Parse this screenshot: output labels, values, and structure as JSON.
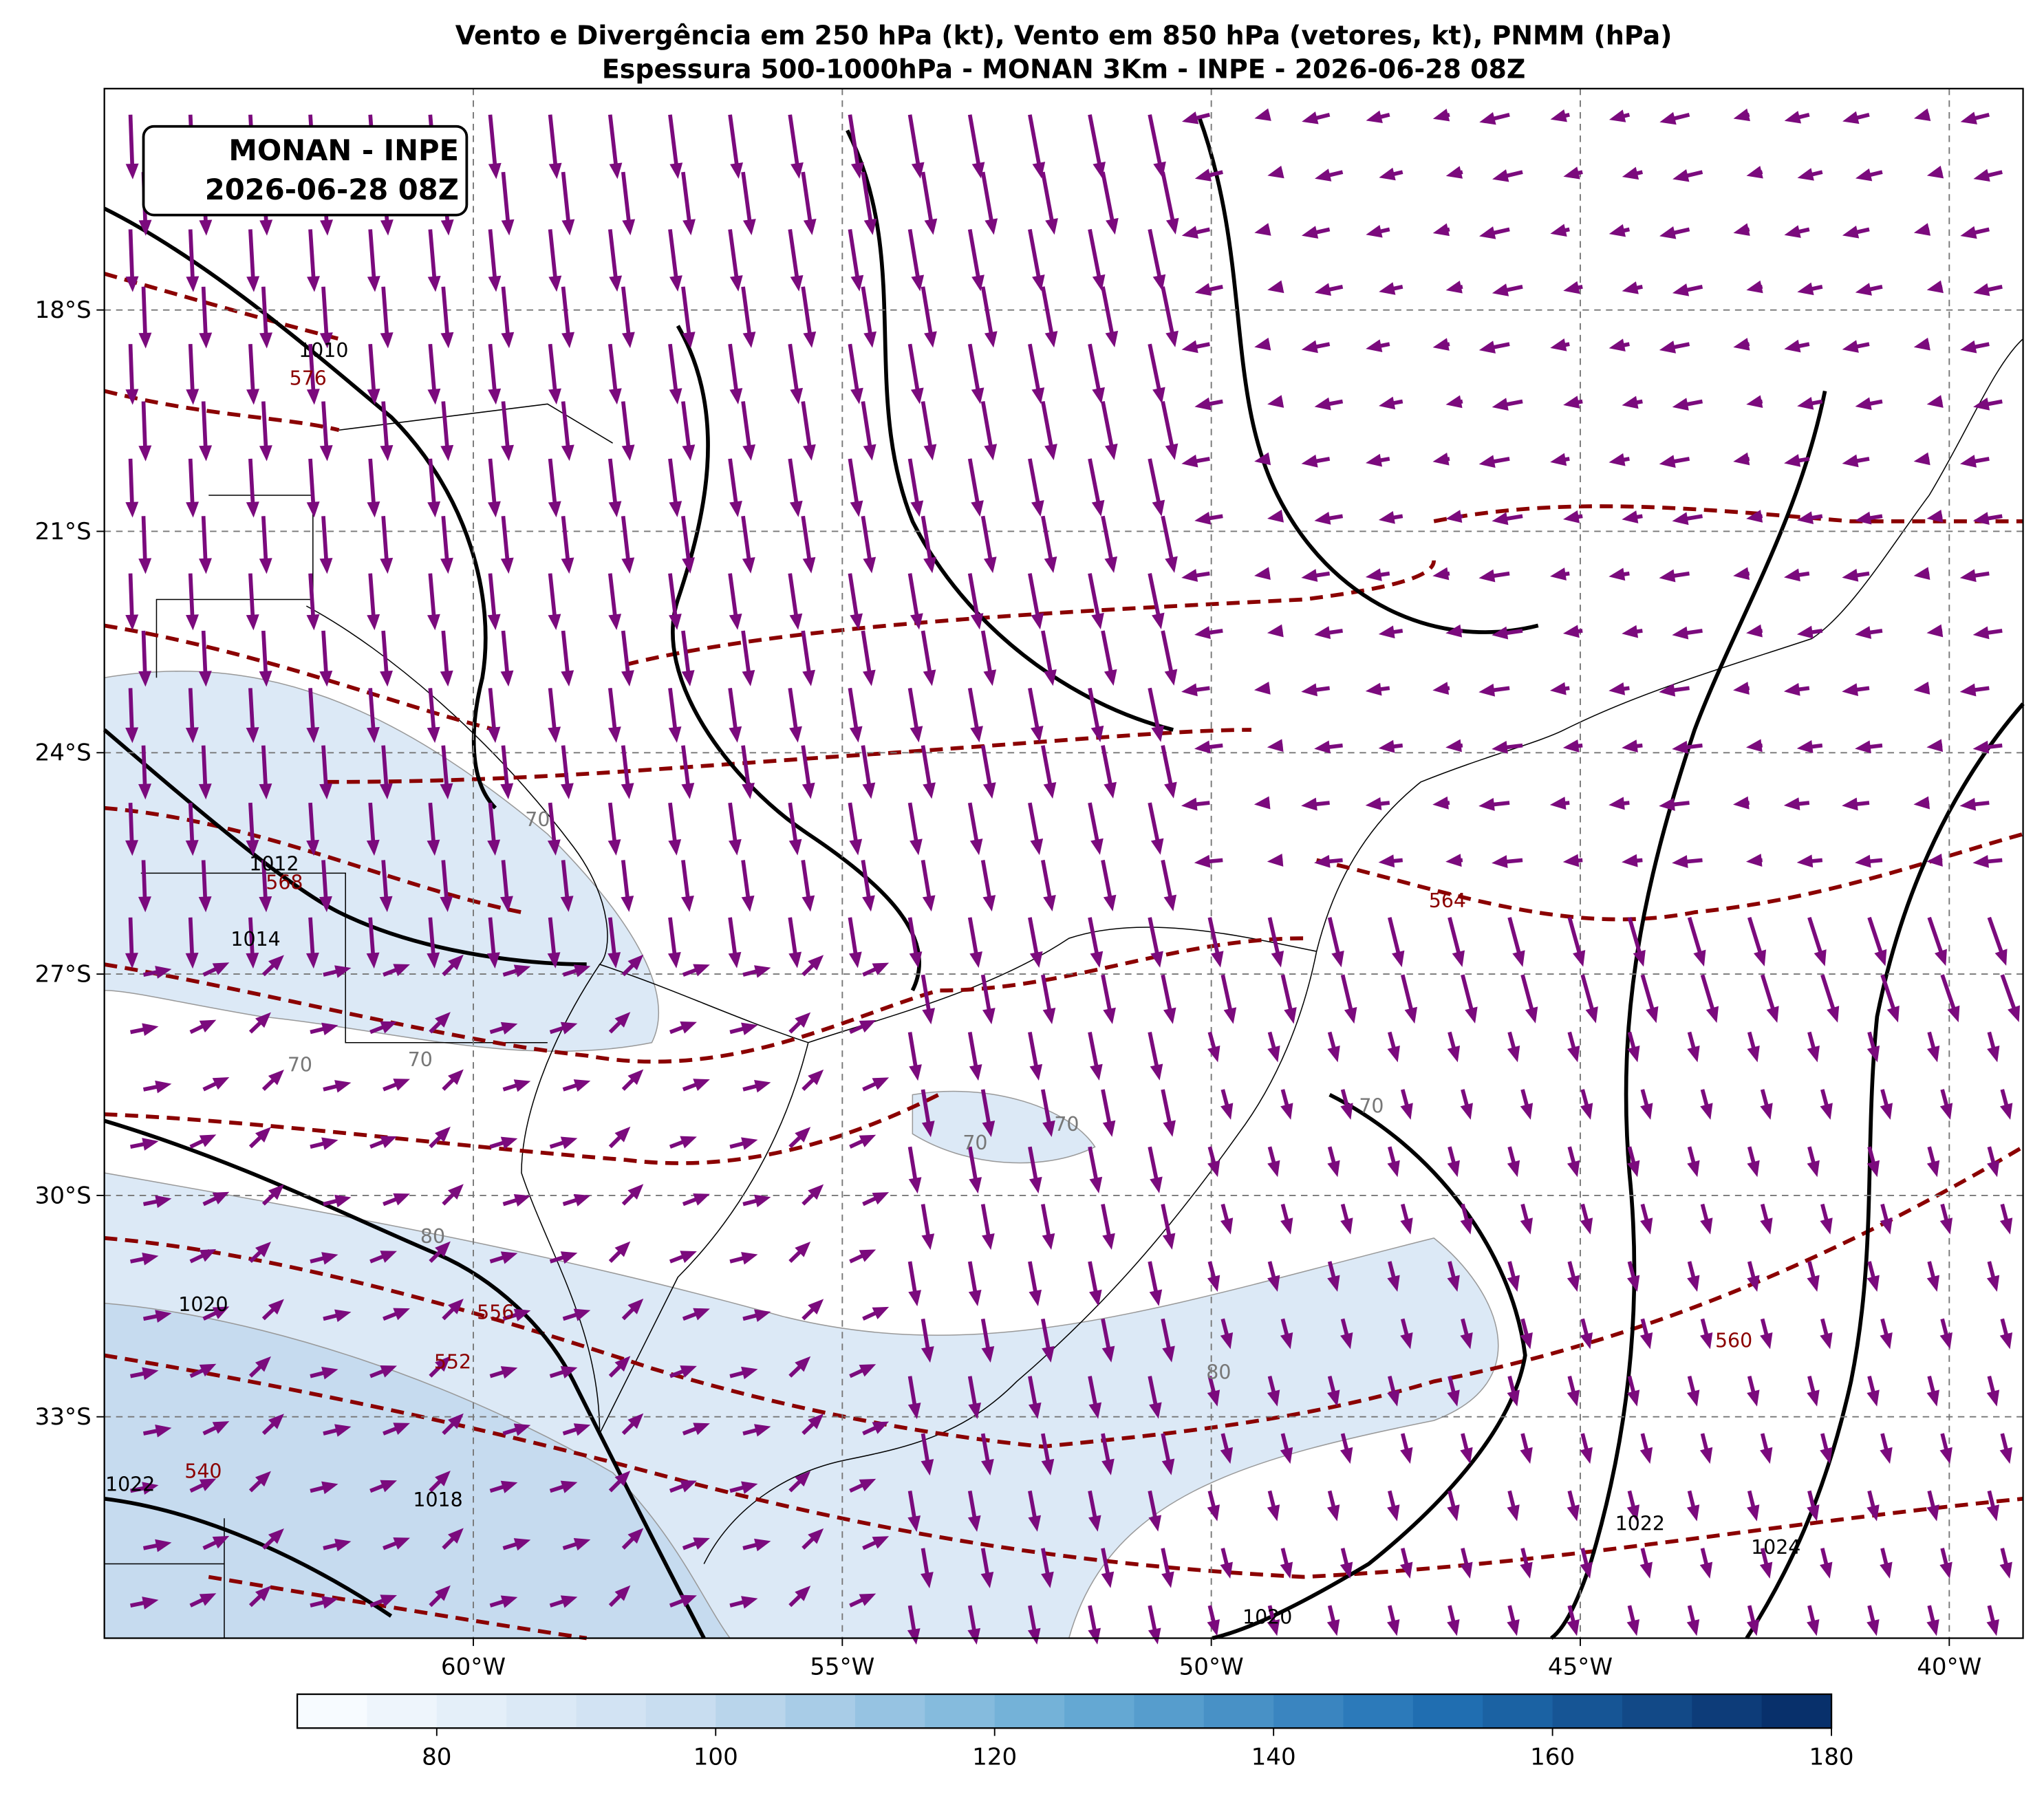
{
  "chart_data": {
    "type": "map",
    "title_lines": [
      "Vento e Divergência em 250 hPa (kt), Vento em 850 hPa (vetores, kt), PNMM (hPa)",
      "Espessura 500-1000hPa - MONAN 3Km - INPE - 2026-06-28 08Z"
    ],
    "annotation_lines": [
      "MONAN - INPE",
      "2026-06-28 08Z"
    ],
    "xlim": [
      -65,
      -39
    ],
    "ylim": [
      -36,
      -15
    ],
    "xticks": [
      {
        "value": -60,
        "label": "60°W"
      },
      {
        "value": -55,
        "label": "55°W"
      },
      {
        "value": -50,
        "label": "50°W"
      },
      {
        "value": -45,
        "label": "45°W"
      },
      {
        "value": -40,
        "label": "40°W"
      }
    ],
    "yticks": [
      {
        "value": -18,
        "label": "18°S"
      },
      {
        "value": -21,
        "label": "21°S"
      },
      {
        "value": -24,
        "label": "24°S"
      },
      {
        "value": -27,
        "label": "27°S"
      },
      {
        "value": -30,
        "label": "30°S"
      },
      {
        "value": -33,
        "label": "33°S"
      }
    ],
    "grid": true,
    "colorbar": {
      "lim": [
        70,
        180
      ],
      "ticks": [
        80,
        100,
        120,
        140,
        160,
        180
      ]
    },
    "contour_labels": [
      {
        "text": "1010",
        "lon": -62.03,
        "lat": -18.53,
        "kind": "pressure"
      },
      {
        "text": "576",
        "lon": -62.24,
        "lat": -18.91,
        "kind": "thickness"
      },
      {
        "text": "1012",
        "lon": -62.7,
        "lat": -25.49,
        "kind": "pressure"
      },
      {
        "text": "568",
        "lon": -62.56,
        "lat": -25.74,
        "kind": "thickness"
      },
      {
        "text": "1014",
        "lon": -62.95,
        "lat": -26.51,
        "kind": "pressure"
      },
      {
        "text": "564",
        "lon": -46.8,
        "lat": -25.99,
        "kind": "thickness"
      },
      {
        "text": "70",
        "lon": -59.13,
        "lat": -24.89,
        "kind": "wind"
      },
      {
        "text": "70",
        "lon": -62.35,
        "lat": -28.21,
        "kind": "wind"
      },
      {
        "text": "70",
        "lon": -60.72,
        "lat": -28.14,
        "kind": "wind"
      },
      {
        "text": "70",
        "lon": -51.96,
        "lat": -29.02,
        "kind": "wind"
      },
      {
        "text": "70",
        "lon": -53.2,
        "lat": -29.27,
        "kind": "wind"
      },
      {
        "text": "70",
        "lon": -47.83,
        "lat": -28.77,
        "kind": "wind"
      },
      {
        "text": "80",
        "lon": -60.55,
        "lat": -30.54,
        "kind": "wind"
      },
      {
        "text": "80",
        "lon": -49.9,
        "lat": -32.38,
        "kind": "wind"
      },
      {
        "text": "556",
        "lon": -59.7,
        "lat": -31.57,
        "kind": "thickness"
      },
      {
        "text": "1020",
        "lon": -63.66,
        "lat": -31.46,
        "kind": "pressure"
      },
      {
        "text": "552",
        "lon": -60.28,
        "lat": -32.24,
        "kind": "thickness"
      },
      {
        "text": "560",
        "lon": -42.92,
        "lat": -31.95,
        "kind": "thickness"
      },
      {
        "text": "1022",
        "lon": -64.65,
        "lat": -33.9,
        "kind": "pressure"
      },
      {
        "text": "540",
        "lon": -63.66,
        "lat": -33.72,
        "kind": "thickness"
      },
      {
        "text": "1018",
        "lon": -60.48,
        "lat": -34.11,
        "kind": "pressure"
      },
      {
        "text": "1022",
        "lon": -44.19,
        "lat": -34.43,
        "kind": "pressure"
      },
      {
        "text": "1024",
        "lon": -42.35,
        "lat": -34.75,
        "kind": "pressure"
      },
      {
        "text": "1020",
        "lon": -49.24,
        "lat": -35.7,
        "kind": "pressure"
      }
    ]
  }
}
